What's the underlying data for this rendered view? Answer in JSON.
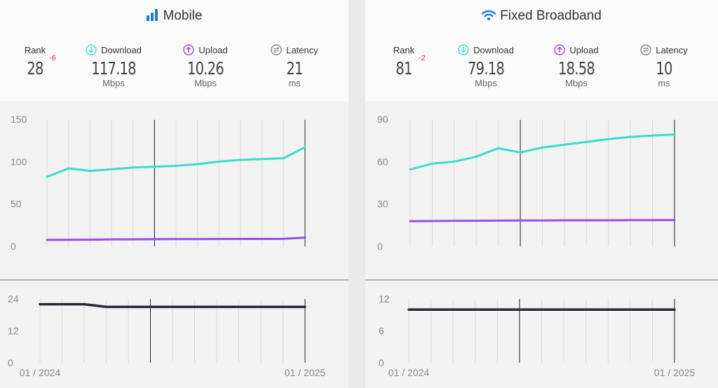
{
  "panels": {
    "mobile": {
      "title": "Mobile",
      "rank_label": "Rank",
      "rank": "28",
      "rank_change": "-6",
      "download_label": "Download",
      "download": "117.18",
      "download_unit": "Mbps",
      "upload_label": "Upload",
      "upload": "10.26",
      "upload_unit": "Mbps",
      "latency_label": "Latency",
      "latency": "21",
      "latency_unit": "ms"
    },
    "fixed": {
      "title": "Fixed Broadband",
      "rank_label": "Rank",
      "rank": "81",
      "rank_change": "-2",
      "download_label": "Download",
      "download": "79.18",
      "download_unit": "Mbps",
      "upload_label": "Upload",
      "upload": "18.58",
      "upload_unit": "Mbps",
      "latency_label": "Latency",
      "latency": "10",
      "latency_unit": "ms"
    }
  },
  "colors": {
    "download": "#3ddcc8",
    "upload": "#9b4de0",
    "latency": "#262838",
    "title_icon": "#1a7fcf",
    "rank_change": "#d6375a"
  },
  "icons": {
    "mobile": "signal-bars-icon",
    "fixed": "wifi-icon",
    "download": "arrow-down-circle-icon",
    "upload": "arrow-up-circle-icon",
    "latency": "latency-arrows-circle-icon"
  },
  "chart_data": [
    {
      "type": "line",
      "panel": "mobile",
      "x": [
        "01 / 2024",
        "02 / 2024",
        "03 / 2024",
        "04 / 2024",
        "05 / 2024",
        "06 / 2024",
        "07 / 2024",
        "08 / 2024",
        "09 / 2024",
        "10 / 2024",
        "11 / 2024",
        "12 / 2024",
        "01 / 2025"
      ],
      "xtick_labels": [
        "01 / 2024",
        "01 / 2025"
      ],
      "series": [
        {
          "key": "download",
          "values": [
            82,
            92,
            89,
            91,
            93,
            94,
            95,
            97,
            100,
            102,
            103,
            104,
            117
          ]
        },
        {
          "key": "upload",
          "values": [
            7.5,
            7.7,
            7.8,
            8.0,
            8.2,
            8.4,
            8.5,
            8.5,
            8.6,
            8.7,
            8.7,
            8.8,
            10.3
          ]
        }
      ],
      "yticks": [
        0,
        50,
        100,
        150
      ],
      "ylim": [
        0,
        150
      ],
      "marker_indices": [
        5,
        12
      ],
      "grid": true
    },
    {
      "type": "line",
      "panel": "mobile-latency",
      "x": [
        "01 / 2024",
        "02 / 2024",
        "03 / 2024",
        "04 / 2024",
        "05 / 2024",
        "06 / 2024",
        "07 / 2024",
        "08 / 2024",
        "09 / 2024",
        "10 / 2024",
        "11 / 2024",
        "12 / 2024",
        "01 / 2025"
      ],
      "xtick_labels": [
        "01 / 2024",
        "01 / 2025"
      ],
      "series": [
        {
          "key": "latency",
          "values": [
            22,
            22,
            22,
            21,
            21,
            21,
            21,
            21,
            21,
            21,
            21,
            21,
            21
          ]
        }
      ],
      "yticks": [
        0,
        12,
        24
      ],
      "ylim": [
        0,
        24
      ],
      "marker_indices": [
        5,
        12
      ],
      "grid": true
    },
    {
      "type": "line",
      "panel": "fixed",
      "x": [
        "01 / 2024",
        "02 / 2024",
        "03 / 2024",
        "04 / 2024",
        "05 / 2024",
        "06 / 2024",
        "07 / 2024",
        "08 / 2024",
        "09 / 2024",
        "10 / 2024",
        "11 / 2024",
        "12 / 2024",
        "01 / 2025"
      ],
      "xtick_labels": [
        "01 / 2024",
        "01 / 2025"
      ],
      "series": [
        {
          "key": "download",
          "values": [
            54.5,
            58.5,
            60,
            63.5,
            69.5,
            66.5,
            70,
            72,
            74,
            76,
            77.5,
            78.5,
            79.2
          ]
        },
        {
          "key": "upload",
          "values": [
            17.8,
            17.9,
            18,
            18.1,
            18.2,
            18.3,
            18.3,
            18.4,
            18.4,
            18.4,
            18.5,
            18.5,
            18.6
          ]
        }
      ],
      "yticks": [
        0,
        30,
        60,
        90
      ],
      "ylim": [
        0,
        90
      ],
      "marker_indices": [
        5,
        13
      ],
      "grid": true
    },
    {
      "type": "line",
      "panel": "fixed-latency",
      "x": [
        "01 / 2024",
        "02 / 2024",
        "03 / 2024",
        "04 / 2024",
        "05 / 2024",
        "06 / 2024",
        "07 / 2024",
        "08 / 2024",
        "09 / 2024",
        "10 / 2024",
        "11 / 2024",
        "12 / 2024",
        "01 / 2025"
      ],
      "xtick_labels": [
        "01 / 2024",
        "01 / 2025"
      ],
      "series": [
        {
          "key": "latency",
          "values": [
            10,
            10,
            10,
            10,
            10,
            10,
            10,
            10,
            10,
            10,
            10,
            10,
            10
          ]
        }
      ],
      "yticks": [
        0,
        6,
        12
      ],
      "ylim": [
        0,
        12
      ],
      "marker_indices": [
        5,
        12
      ],
      "grid": true
    }
  ]
}
